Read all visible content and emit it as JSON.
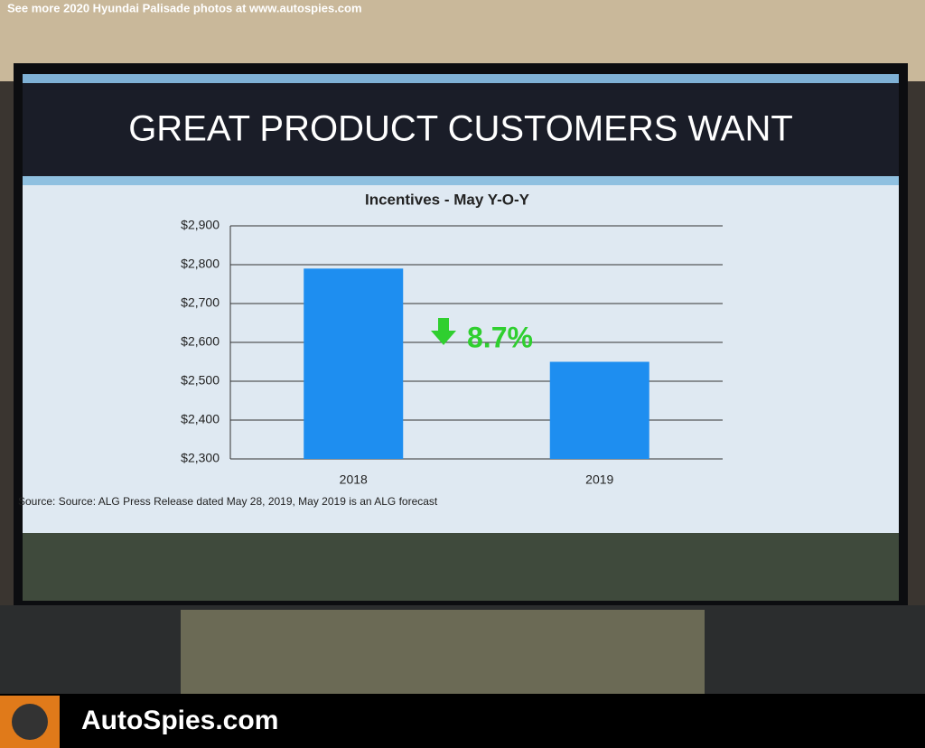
{
  "page": {
    "watermark": "See more 2020 Hyundai Palisade photos at www.autospies.com",
    "slide_title": "GREAT PRODUCT CUSTOMERS WANT",
    "source": "Source: Source: ALG Press Release dated May 28, 2019, May 2019 is an ALG forecast",
    "brand": "AutoSpies.com"
  },
  "chart_data": {
    "type": "bar",
    "title": "Incentives - May Y-O-Y",
    "categories": [
      "2018",
      "2019"
    ],
    "values": [
      2790,
      2550
    ],
    "color": "#1e8ef0",
    "ylim": [
      2300,
      2900
    ],
    "yticks": [
      {
        "value": 2300,
        "label": "$2,300"
      },
      {
        "value": 2400,
        "label": "$2,400"
      },
      {
        "value": 2500,
        "label": "$2,500"
      },
      {
        "value": 2600,
        "label": "$2,600"
      },
      {
        "value": 2700,
        "label": "$2,700"
      },
      {
        "value": 2800,
        "label": "$2,800"
      },
      {
        "value": 2900,
        "label": "$2,900"
      }
    ],
    "grid": true,
    "annotation": "8.7%"
  }
}
